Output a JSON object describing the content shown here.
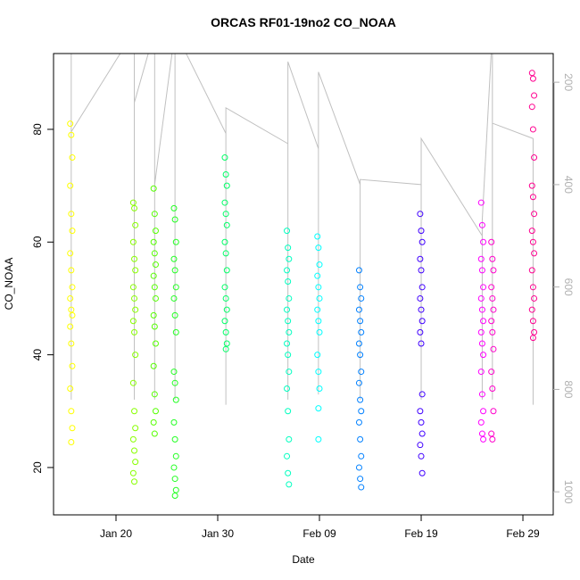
{
  "chart_data": {
    "type": "scatter",
    "title": "ORCAS RF01-19no2 CO_NOAA",
    "x_label": "Date",
    "y_label": "CO_NOAA",
    "xlim": [
      13.86,
      62.98
    ],
    "xticks": [
      {
        "value": 20,
        "label": "Jan 20"
      },
      {
        "value": 30,
        "label": "Jan 30"
      },
      {
        "value": 40,
        "label": "Feb 09"
      },
      {
        "value": 50,
        "label": "Feb 19"
      },
      {
        "value": 60,
        "label": "Feb 29"
      }
    ],
    "ylim": [
      11.6,
      93.45
    ],
    "yticks": [
      20,
      40,
      60,
      80
    ],
    "y2lim": [
      1045,
      144
    ],
    "y2ticks": [
      200,
      400,
      600,
      800,
      1000
    ],
    "series": [
      {
        "color": "#ffff00",
        "x": [
          15.5,
          15.6,
          15.7,
          15.5,
          15.6,
          15.7,
          15.5,
          15.6,
          15.7,
          15.5,
          15.6,
          15.7,
          15.5,
          15.6,
          15.7,
          15.5,
          15.6,
          15.7,
          15.6
        ],
        "values": [
          81,
          79,
          75,
          70,
          65,
          62,
          58,
          55,
          52,
          50,
          48,
          47,
          45,
          42,
          38,
          34,
          30,
          27,
          24.5
        ]
      },
      {
        "color": "#88ff00",
        "x": [
          21.7,
          21.8,
          21.9,
          21.7,
          21.8,
          21.9,
          21.7,
          21.8,
          21.9,
          21.7,
          21.8,
          21.9,
          21.7,
          21.8,
          21.9,
          21.7,
          21.8,
          21.9,
          21.7,
          21.8
        ],
        "values": [
          67,
          66,
          63,
          60,
          57,
          55,
          52,
          50,
          48,
          46,
          44,
          40,
          35,
          30,
          27,
          25,
          23,
          21,
          19,
          17.5
        ]
      },
      {
        "color": "#55ff00",
        "x": [
          23.7,
          23.8,
          23.9,
          23.7,
          23.8,
          23.9,
          23.7,
          23.8,
          23.9,
          23.7,
          23.8,
          23.9,
          23.7,
          23.8,
          23.9,
          23.7,
          23.8
        ],
        "values": [
          69.5,
          65,
          62,
          60,
          58,
          56,
          54,
          52,
          50,
          47,
          45,
          42,
          38,
          33,
          30,
          28,
          26
        ]
      },
      {
        "color": "#22ff22",
        "x": [
          25.7,
          25.8,
          25.9,
          25.7,
          25.8,
          25.9,
          25.7,
          25.8,
          25.9,
          25.7,
          25.8,
          25.9,
          25.7,
          25.8,
          25.9,
          25.7,
          25.8,
          25.9,
          25.8
        ],
        "values": [
          66,
          64,
          60,
          57,
          55,
          52,
          50,
          47,
          44,
          37,
          35,
          32,
          28,
          25,
          22,
          20,
          18,
          16,
          15
        ]
      },
      {
        "color": "#00ff66",
        "x": [
          30.7,
          30.8,
          30.9,
          30.7,
          30.8,
          30.9,
          30.7,
          30.8,
          30.9,
          30.7,
          30.8,
          30.9,
          30.7,
          30.8,
          30.9,
          30.8
        ],
        "values": [
          75,
          72,
          70,
          67,
          65,
          63,
          60,
          58,
          55,
          52,
          50,
          48,
          46,
          44,
          42,
          41
        ]
      },
      {
        "color": "#00ffc0",
        "x": [
          36.8,
          36.9,
          37.0,
          36.8,
          36.9,
          37.0,
          36.8,
          36.9,
          37.0,
          36.8,
          36.9,
          37.0,
          36.8,
          36.9,
          37.0,
          36.8,
          36.9,
          37.0
        ],
        "values": [
          62,
          59,
          57,
          55,
          53,
          50,
          48,
          46,
          44,
          42,
          40,
          37,
          34,
          30,
          25,
          22,
          19,
          17
        ]
      },
      {
        "color": "#00ffff",
        "x": [
          39.8,
          39.9,
          40.0,
          39.8,
          39.9,
          40.0,
          39.8,
          39.9,
          40.0,
          39.8,
          39.9,
          40.0,
          39.9,
          39.9
        ],
        "values": [
          61,
          59,
          56,
          54,
          52,
          50,
          48,
          46,
          44,
          40,
          37,
          34,
          30.5,
          25
        ]
      },
      {
        "color": "#0080ff",
        "x": [
          43.9,
          44.0,
          44.1,
          43.9,
          44.0,
          44.1,
          43.9,
          44.0,
          44.1,
          43.9,
          44.0,
          44.1,
          43.9,
          44.0,
          44.1,
          43.9,
          44.0,
          44.1
        ],
        "values": [
          55,
          52,
          50,
          48,
          46,
          44,
          42,
          40,
          37,
          35,
          32,
          30,
          28,
          25,
          22,
          20,
          18,
          16.5
        ]
      },
      {
        "color": "#4000ff",
        "x": [
          49.9,
          50.0,
          50.1,
          49.9,
          50.0,
          50.1,
          49.9,
          50.0,
          50.1,
          49.9,
          50.0,
          50.1,
          49.9,
          50.0,
          50.1,
          49.9,
          50.0,
          50.1
        ],
        "values": [
          65,
          62,
          60,
          57,
          55,
          52,
          50,
          48,
          46,
          44,
          42,
          33,
          30,
          28,
          26,
          24,
          22,
          19
        ]
      },
      {
        "color": "#ff00ff",
        "x": [
          55.9,
          56.0,
          56.1,
          55.9,
          56.0,
          56.1,
          55.9,
          56.0,
          56.1,
          55.9,
          56.0,
          56.1,
          55.9,
          56.0,
          56.1,
          55.9,
          56.0,
          56.1
        ],
        "values": [
          67,
          63,
          60,
          57,
          55,
          52,
          50,
          48,
          46,
          44,
          42,
          40,
          37,
          33,
          30,
          28,
          26,
          25
        ]
      },
      {
        "color": "#ff00cc",
        "x": [
          56.9,
          57.0,
          57.1,
          56.9,
          57.0,
          57.1,
          56.9,
          57.0,
          57.1,
          56.9,
          57.0,
          57.1,
          56.9,
          57.0
        ],
        "values": [
          60,
          57,
          55,
          52,
          50,
          48,
          46,
          44,
          41,
          37,
          34,
          30,
          26,
          25
        ]
      },
      {
        "color": "#ff0090",
        "x": [
          60.9,
          61.0,
          61.1,
          60.9,
          61.0,
          61.1,
          60.9,
          61.0,
          61.1,
          60.9,
          61.0,
          61.1,
          60.9,
          61.0,
          61.1,
          60.9,
          61.0,
          61.1,
          61.0
        ],
        "values": [
          90,
          89,
          86,
          84,
          80,
          75,
          70,
          68,
          65,
          62,
          60,
          58,
          55,
          52,
          50,
          48,
          46,
          44,
          43
        ]
      },
      {
        "type": "line",
        "axis": "y2",
        "color": "#c0c0c0",
        "x": [
          15.6,
          15.6,
          15.6,
          21.8,
          21.8,
          21.8,
          23.8,
          23.8,
          23.8,
          25.8,
          25.8,
          25.8,
          30.8,
          30.8,
          30.8,
          36.9,
          36.9,
          36.9,
          39.9,
          39.9,
          39.9,
          44.0,
          44.0,
          44.0,
          50.0,
          50.0,
          50.0,
          56.0,
          56.0,
          56.0,
          57.0,
          57.0,
          57.0,
          61.0,
          61.0
        ],
        "values": [
          100,
          820,
          297,
          100,
          820,
          240,
          100,
          820,
          400,
          100,
          820,
          100,
          300,
          830,
          250,
          320,
          820,
          160,
          330,
          810,
          180,
          400,
          820,
          390,
          400,
          820,
          310,
          500,
          820,
          470,
          100,
          820,
          280,
          310,
          830
        ]
      }
    ]
  }
}
